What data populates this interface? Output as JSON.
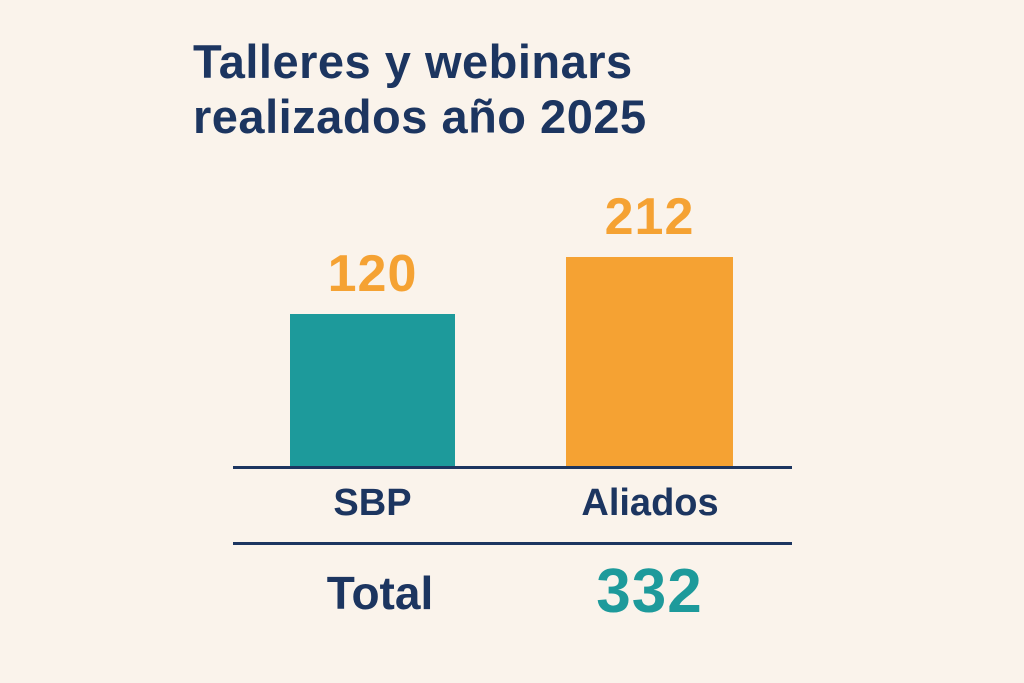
{
  "colors": {
    "background": "#FAF3EB",
    "navy": "#1C3560",
    "orange": "#F5A233",
    "teal": "#1D9A9B"
  },
  "chart_data": {
    "type": "bar",
    "title": "Talleres y webinars realizados año 2025",
    "title_lines": [
      "Talleres y webinars",
      "realizados año 2025"
    ],
    "categories": [
      "SBP",
      "Aliados"
    ],
    "values": [
      120,
      212
    ],
    "bar_colors": [
      "#1D9A9B",
      "#F5A233"
    ],
    "value_label_color": "#F5A233",
    "xlabel": "",
    "ylabel": "",
    "ylim": [
      0,
      230
    ],
    "grid": false,
    "legend": "none",
    "total": {
      "label": "Total",
      "value": 332
    }
  }
}
